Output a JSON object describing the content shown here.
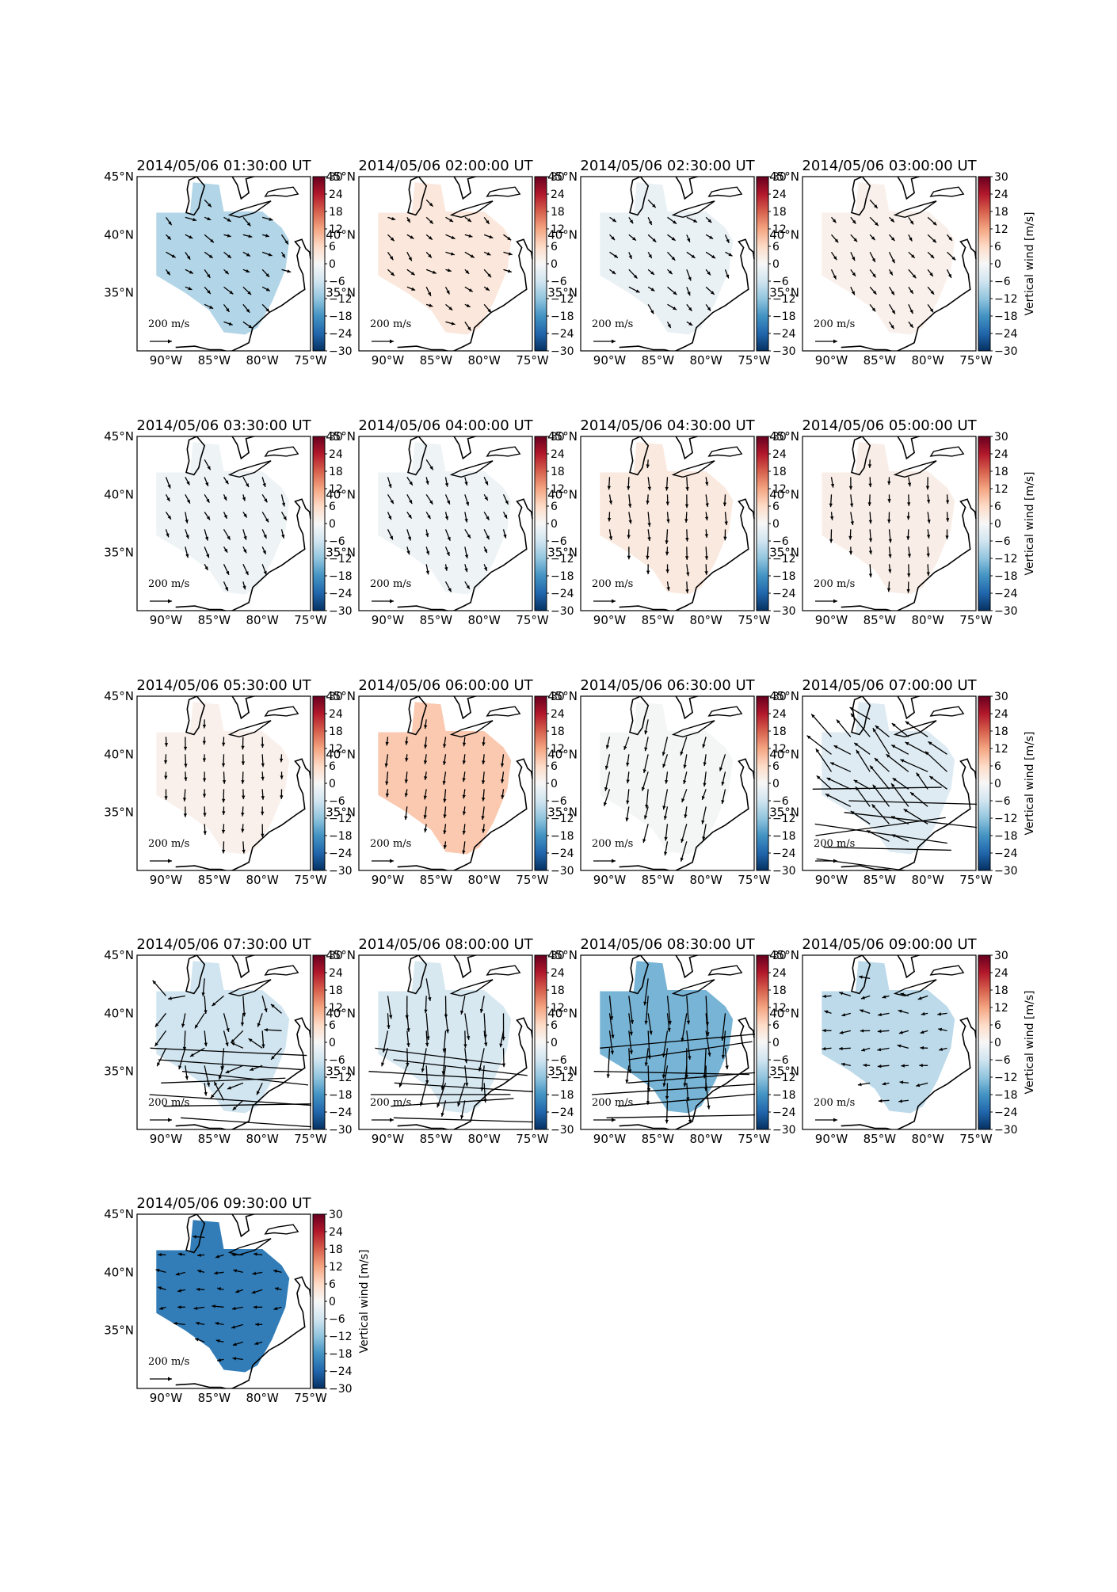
{
  "figure": {
    "colorbar_label": "Vertical wind [m/s]",
    "colorbar_ticks": [
      "30",
      "24",
      "18",
      "12",
      "6",
      "0",
      "−6",
      "−12",
      "−18",
      "−24",
      "−30"
    ],
    "lat_labels": [
      "45°N",
      "40°N",
      "35°N"
    ],
    "lon_labels": [
      "90°W",
      "85°W",
      "80°W",
      "75°W"
    ],
    "ref_arrow_value": "200",
    "ref_arrow_unit_num": "m",
    "ref_arrow_unit_den": "s",
    "colors": {
      "cb_stops": [
        "#053061",
        "#2166ac",
        "#4393c3",
        "#92c5de",
        "#d1e5f0",
        "#f7f7f7",
        "#fddbc7",
        "#f4a582",
        "#d6604d",
        "#b2182b",
        "#67001f"
      ]
    }
  },
  "chart_data": [
    {
      "type": "heatmap",
      "title": "2014/05/06 01:30:00 UT",
      "ylim": [
        30,
        45
      ],
      "xlim": [
        -93,
        -75
      ],
      "vertical_wind": -9,
      "arrow_dir_deg": [
        10,
        60
      ],
      "arrow_mag": 1.0
    },
    {
      "type": "heatmap",
      "title": "2014/05/06 02:00:00 UT",
      "ylim": [
        30,
        45
      ],
      "xlim": [
        -93,
        -75
      ],
      "vertical_wind": 3.5,
      "arrow_dir_deg": [
        15,
        65
      ],
      "arrow_mag": 0.9
    },
    {
      "type": "heatmap",
      "title": "2014/05/06 02:30:00 UT",
      "ylim": [
        30,
        45
      ],
      "xlim": [
        -93,
        -75
      ],
      "vertical_wind": -2,
      "arrow_dir_deg": [
        25,
        70
      ],
      "arrow_mag": 1.0
    },
    {
      "type": "heatmap",
      "title": "2014/05/06 03:00:00 UT",
      "ylim": [
        30,
        45
      ],
      "xlim": [
        -93,
        -75
      ],
      "vertical_wind": 1.5,
      "arrow_dir_deg": [
        40,
        65
      ],
      "arrow_mag": 1.0
    },
    {
      "type": "heatmap",
      "title": "2014/05/06 03:30:00 UT",
      "ylim": [
        30,
        45
      ],
      "xlim": [
        -93,
        -75
      ],
      "vertical_wind": -1.5,
      "arrow_dir_deg": [
        55,
        80
      ],
      "arrow_mag": 1.0
    },
    {
      "type": "heatmap",
      "title": "2014/05/06 04:00:00 UT",
      "ylim": [
        30,
        45
      ],
      "xlim": [
        -93,
        -75
      ],
      "vertical_wind": -1.5,
      "arrow_dir_deg": [
        55,
        80
      ],
      "arrow_mag": 1.0
    },
    {
      "type": "heatmap",
      "title": "2014/05/06 04:30:00 UT",
      "ylim": [
        30,
        45
      ],
      "xlim": [
        -93,
        -75
      ],
      "vertical_wind": 3,
      "arrow_dir_deg": [
        80,
        95
      ],
      "arrow_mag": 1.2
    },
    {
      "type": "heatmap",
      "title": "2014/05/06 05:00:00 UT",
      "ylim": [
        30,
        45
      ],
      "xlim": [
        -93,
        -75
      ],
      "vertical_wind": 2,
      "arrow_dir_deg": [
        80,
        95
      ],
      "arrow_mag": 1.1
    },
    {
      "type": "heatmap",
      "title": "2014/05/06 05:30:00 UT",
      "ylim": [
        30,
        45
      ],
      "xlim": [
        -93,
        -75
      ],
      "vertical_wind": 1.5,
      "arrow_dir_deg": [
        85,
        95
      ],
      "arrow_mag": 1.1
    },
    {
      "type": "heatmap",
      "title": "2014/05/06 06:00:00 UT",
      "ylim": [
        30,
        45
      ],
      "xlim": [
        -93,
        -75
      ],
      "vertical_wind": 8,
      "arrow_dir_deg": [
        95,
        100
      ],
      "arrow_mag": 1.1
    },
    {
      "type": "heatmap",
      "title": "2014/05/06 06:30:00 UT",
      "ylim": [
        30,
        45
      ],
      "xlim": [
        -93,
        -75
      ],
      "vertical_wind": -0.5,
      "arrow_dir_deg": [
        95,
        110
      ],
      "arrow_mag": 1.7
    },
    {
      "type": "heatmap",
      "title": "2014/05/06 07:00:00 UT",
      "ylim": [
        30,
        45
      ],
      "xlim": [
        -93,
        -75
      ],
      "vertical_wind": -4,
      "arrow_dir_deg": [
        200,
        240
      ],
      "arrow_mag": 2.5,
      "outliers": true
    },
    {
      "type": "heatmap",
      "title": "2014/05/06 07:30:00 UT",
      "ylim": [
        30,
        45
      ],
      "xlim": [
        -93,
        -75
      ],
      "vertical_wind": -6,
      "arrow_dir_deg": [
        70,
        250
      ],
      "arrow_mag": 1.8,
      "outliers": true
    },
    {
      "type": "heatmap",
      "title": "2014/05/06 08:00:00 UT",
      "ylim": [
        30,
        45
      ],
      "xlim": [
        -93,
        -75
      ],
      "vertical_wind": -5,
      "arrow_dir_deg": [
        80,
        110
      ],
      "arrow_mag": 2.2,
      "outliers": true
    },
    {
      "type": "heatmap",
      "title": "2014/05/06 08:30:00 UT",
      "ylim": [
        30,
        45
      ],
      "xlim": [
        -93,
        -75
      ],
      "vertical_wind": -14,
      "arrow_dir_deg": [
        80,
        100
      ],
      "arrow_mag": 2.5,
      "outliers": true
    },
    {
      "type": "heatmap",
      "title": "2014/05/06 09:00:00 UT",
      "ylim": [
        30,
        45
      ],
      "xlim": [
        -93,
        -75
      ],
      "vertical_wind": -8,
      "arrow_dir_deg": [
        160,
        200
      ],
      "arrow_mag": 1.0
    },
    {
      "type": "heatmap",
      "title": "2014/05/06 09:30:00 UT",
      "ylim": [
        30,
        45
      ],
      "xlim": [
        -93,
        -75
      ],
      "vertical_wind": -21,
      "arrow_dir_deg": [
        160,
        200
      ],
      "arrow_mag": 1.0
    }
  ]
}
